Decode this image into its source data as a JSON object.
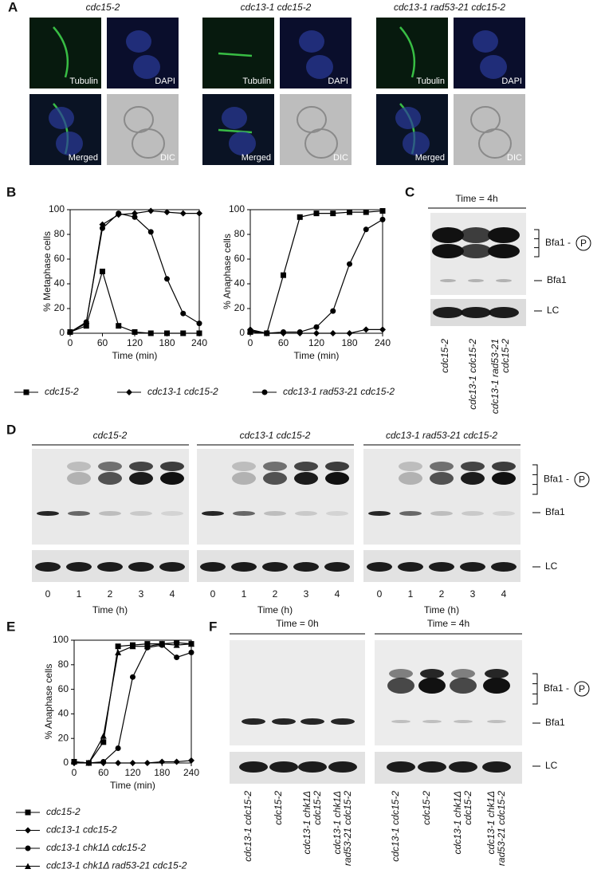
{
  "panel_labels": [
    "A",
    "B",
    "C",
    "D",
    "E",
    "F"
  ],
  "panel_a": {
    "strains": [
      "cdc15-2",
      "cdc13-1 cdc15-2",
      "cdc13-1 rad53-21 cdc15-2"
    ],
    "image_labels": [
      "Tubulin",
      "DAPI",
      "Merged",
      "DIC"
    ]
  },
  "chart_data": [
    {
      "type": "line",
      "ylabel": "% Metaphase cells",
      "xlabel": "Time (min)",
      "x": [
        0,
        30,
        60,
        90,
        120,
        150,
        180,
        210,
        240
      ],
      "xlim": [
        0,
        240
      ],
      "ylim": [
        0,
        100
      ],
      "xticks": [
        0,
        60,
        120,
        180,
        240
      ],
      "yticks": [
        0,
        20,
        40,
        60,
        80,
        100
      ],
      "legend": "bottom",
      "series": [
        {
          "name": "cdc15-2",
          "marker": "square",
          "color": "#000000",
          "values": [
            1,
            6,
            50,
            6,
            1,
            0,
            0,
            0,
            0
          ]
        },
        {
          "name": "cdc13-1 cdc15-2",
          "marker": "diamond",
          "color": "#000000",
          "values": [
            1,
            8,
            88,
            96,
            97,
            99,
            98,
            97,
            97
          ]
        },
        {
          "name": "cdc13-1 rad53-21 cdc15-2",
          "marker": "circle",
          "color": "#000000",
          "values": [
            1,
            9,
            85,
            97,
            94,
            82,
            44,
            16,
            8
          ]
        }
      ]
    },
    {
      "type": "line",
      "ylabel": "% Anaphase cells",
      "xlabel": "Time (min)",
      "x": [
        0,
        30,
        60,
        90,
        120,
        150,
        180,
        210,
        240
      ],
      "xlim": [
        0,
        240
      ],
      "ylim": [
        0,
        100
      ],
      "xticks": [
        0,
        60,
        120,
        180,
        240
      ],
      "yticks": [
        0,
        20,
        40,
        60,
        80,
        100
      ],
      "series": [
        {
          "marker": "square",
          "color": "#000000",
          "values": [
            1,
            0,
            47,
            94,
            97,
            97,
            98,
            98,
            99
          ]
        },
        {
          "marker": "diamond",
          "color": "#000000",
          "values": [
            3,
            0,
            0,
            0,
            0,
            0,
            0,
            3,
            3
          ]
        },
        {
          "marker": "circle",
          "color": "#000000",
          "values": [
            2,
            0,
            1,
            1,
            5,
            18,
            56,
            84,
            92
          ]
        }
      ]
    },
    {
      "type": "line",
      "ylabel": "% Anaphase cells",
      "xlabel": "Time (min)",
      "x": [
        0,
        30,
        60,
        90,
        120,
        150,
        180,
        210,
        240
      ],
      "xlim": [
        0,
        240
      ],
      "ylim": [
        0,
        100
      ],
      "xticks": [
        0,
        60,
        120,
        180,
        240
      ],
      "yticks": [
        0,
        20,
        40,
        60,
        80,
        100
      ],
      "legend": "bottom",
      "series": [
        {
          "name": "cdc15-2",
          "marker": "square",
          "color": "#000000",
          "values": [
            1,
            0,
            17,
            95,
            96,
            97,
            97,
            98,
            97
          ]
        },
        {
          "name": "cdc13-1 cdc15-2",
          "marker": "diamond",
          "color": "#000000",
          "values": [
            0,
            0,
            0,
            0,
            0,
            0,
            1,
            1,
            2
          ]
        },
        {
          "name": "cdc13-1 chk1Δ cdc15-2",
          "marker": "circle",
          "color": "#000000",
          "values": [
            1,
            0,
            1,
            12,
            70,
            94,
            96,
            86,
            90
          ]
        },
        {
          "name": "cdc13-1 chk1Δ rad53-21 cdc15-2",
          "marker": "triangle",
          "color": "#000000",
          "values": [
            1,
            0,
            22,
            90,
            95,
            95,
            97,
            96,
            97
          ]
        }
      ]
    }
  ],
  "panel_c": {
    "header": "Time = 4h",
    "lanes": [
      [
        "cdc15-2"
      ],
      [
        "cdc13-1 cdc15-2"
      ],
      [
        "cdc13-1 rad53-21",
        "cdc15-2"
      ]
    ],
    "bands": {
      "phospho": "Bfa1 -",
      "p": "P",
      "bfa1": "Bfa1",
      "lc": "LC"
    }
  },
  "panel_d": {
    "strains": [
      "cdc15-2",
      "cdc13-1 cdc15-2",
      "cdc13-1 rad53-21 cdc15-2"
    ],
    "timepoints": [
      0,
      1,
      2,
      3,
      4
    ],
    "xlabel": "Time (h)",
    "bands": {
      "phospho": "Bfa1 -",
      "p": "P",
      "bfa1": "Bfa1",
      "lc": "LC"
    }
  },
  "panel_f": {
    "headers": [
      "Time = 0h",
      "Time = 4h"
    ],
    "lanes": [
      [
        "cdc13-1 cdc15-2"
      ],
      [
        "cdc15-2"
      ],
      [
        "cdc13-1 chk1Δ",
        "cdc15-2"
      ],
      [
        "cdc13-1 chk1Δ",
        "rad53-21 cdc15-2"
      ]
    ],
    "bands": {
      "phospho": "Bfa1 -",
      "p": "P",
      "bfa1": "Bfa1",
      "lc": "LC"
    }
  }
}
